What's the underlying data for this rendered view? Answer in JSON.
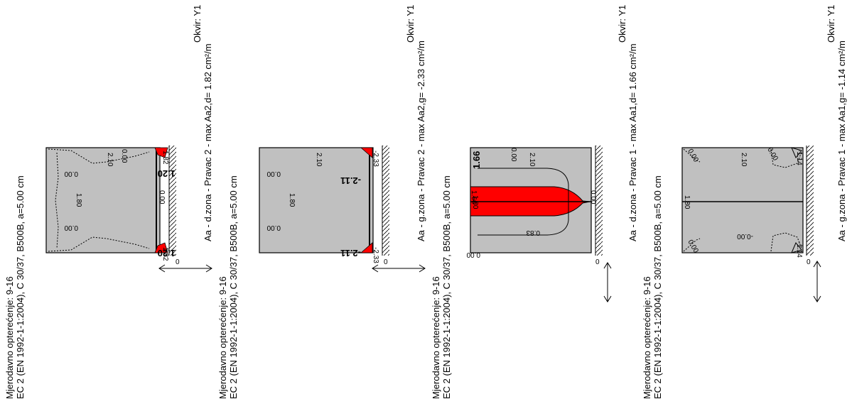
{
  "panels": [
    {
      "id": "p1",
      "title_line1": "Mjerodavno opterećenje: 9-16",
      "title_line2": "EC 2 (EN 1992-1-1:2004), C 30/37, B500B, a=5.00 cm",
      "right_line1": "Okvir: Y1",
      "right_line2": "Aa - d.zona - Pravac 2 - max Aa2,d= 1.82 cm²/m",
      "dim_top": "2.10",
      "dim_left": "1.80",
      "val_tl": "0.00",
      "val_bl": "0.00",
      "val_center": "0.00",
      "val_edge_top": "1.20",
      "val_edge_bot": "1.20",
      "val_corner_top": "1.82",
      "val_corner_bot": "1.82",
      "val_top_small": "0.00",
      "val_zero": "0"
    },
    {
      "id": "p2",
      "title_line1": "Mjerodavno opterećenje: 9-16",
      "title_line2": "EC 2 (EN 1992-1-1:2004), C 30/37, B500B, a=5.00 cm",
      "right_line1": "Okvir: Y1",
      "right_line2": "Aa - g.zona - Pravac 2 - max Aa2,g= -2.33 cm²/m",
      "dim_top": "2.10",
      "dim_left": "1.80",
      "val_tl": "0.00",
      "val_bl": "0.00",
      "val_edge_top": "-2.11",
      "val_edge_bot": "-2.11",
      "val_corner_top": "-2.33",
      "val_corner_bot": "-2.33",
      "val_zero": "0"
    },
    {
      "id": "p3",
      "title_line1": "Mjerodavno opterećenje: 9-16",
      "title_line2": "EC 2 (EN 1992-1-1:2004), C 30/37, B500B, a=5.00 cm",
      "right_line1": "Okvir: Y1",
      "right_line2": "Aa - d.zona - Pravac 1 - max Aa1,d= 1.66 cm²/m",
      "dim_top": "2.10",
      "dim_left": "1.80",
      "val_tl": "0.00",
      "val_bl": "0.00",
      "val_peak": "1.66",
      "val_peak_small": "1.66",
      "val_contour": "0.83",
      "val_right": "0.00",
      "val_zero": "0"
    },
    {
      "id": "p4",
      "title_line1": "Mjerodavno opterećenje: 9-16",
      "title_line2": "EC 2 (EN 1992-1-1:2004), C 30/37, B500B, a=5.00 cm",
      "right_line1": "Okvir: Y1",
      "right_line2": "Aa - g.zona - Pravac 1 - max Aa1,g= -1.14 cm²/m",
      "dim_top": "2.10",
      "dim_left": "1.80",
      "val_tl": "0.00",
      "val_bl": "0.00",
      "val_top_mid": "0.00",
      "val_bot_mid": "-0.00",
      "val_corner_top": "-1.14",
      "val_corner_bot": "-1.14",
      "val_zero": "0"
    }
  ],
  "colors": {
    "plate_fill": "#c0c0c0",
    "highlight": "#ff0000",
    "line": "#000000"
  }
}
